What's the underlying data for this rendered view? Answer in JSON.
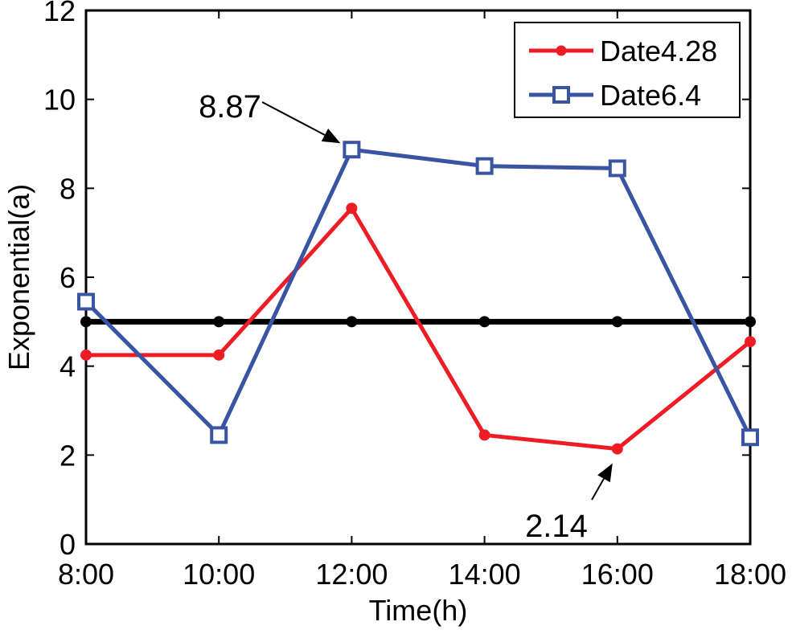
{
  "chart_data": {
    "type": "line",
    "x_label": "Time(h)",
    "y_label": "Exponential(a)",
    "categories": [
      "8:00",
      "10:00",
      "12:00",
      "14:00",
      "16:00",
      "18:00"
    ],
    "y_ticks": [
      "0",
      "2",
      "4",
      "6",
      "8",
      "10",
      "12"
    ],
    "ylim": [
      0,
      12
    ],
    "grid": false,
    "legend_position": "top-right",
    "series": [
      {
        "name": "Date4.28",
        "color": "#ee1c25",
        "marker": "circle",
        "values": [
          4.25,
          4.25,
          7.55,
          2.45,
          2.14,
          4.55
        ]
      },
      {
        "name": "Date6.4",
        "color": "#3a54a4",
        "marker": "square",
        "values": [
          5.45,
          2.45,
          8.87,
          8.5,
          8.45,
          2.4
        ]
      },
      {
        "color": "#000000",
        "marker": "circle",
        "values": [
          5,
          5,
          5,
          5,
          5,
          5
        ]
      }
    ],
    "annotations": [
      {
        "text": "8.87",
        "series": 1,
        "point": 2
      },
      {
        "text": "2.14",
        "series": 0,
        "point": 4
      }
    ]
  }
}
